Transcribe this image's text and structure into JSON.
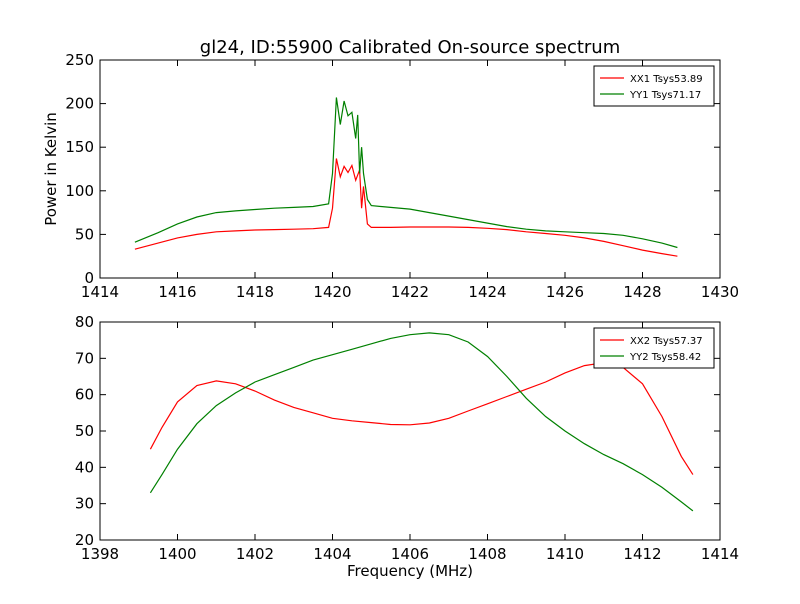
{
  "figure_title": "gl24, ID:55900 Calibrated On-source spectrum",
  "ylabel_shared": "Power in Kelvin",
  "xlabel_shared": "Frequency (MHz)",
  "chart_data": [
    {
      "type": "line",
      "title": "gl24, ID:55900 Calibrated On-source spectrum",
      "xlabel": "",
      "ylabel": "Power in Kelvin",
      "xlim": [
        1414,
        1430
      ],
      "ylim": [
        0,
        250
      ],
      "xticks": [
        1414,
        1416,
        1418,
        1420,
        1422,
        1424,
        1426,
        1428,
        1430
      ],
      "yticks": [
        0,
        50,
        100,
        150,
        200,
        250
      ],
      "legend_position": "top-right",
      "grid": false,
      "series": [
        {
          "name": "XX1 Tsys53.89",
          "color": "#ff0000",
          "x": [
            1414.9,
            1415.5,
            1416.0,
            1416.5,
            1417.0,
            1417.5,
            1418.0,
            1418.5,
            1419.0,
            1419.5,
            1419.9,
            1420.0,
            1420.1,
            1420.2,
            1420.3,
            1420.4,
            1420.5,
            1420.6,
            1420.7,
            1420.75,
            1420.8,
            1420.9,
            1421.0,
            1421.5,
            1422.0,
            1422.5,
            1423.0,
            1423.5,
            1424.0,
            1424.5,
            1425.0,
            1425.5,
            1426.0,
            1426.5,
            1427.0,
            1427.5,
            1428.0,
            1428.5,
            1428.9
          ],
          "values": [
            33,
            40,
            46,
            50,
            53,
            54,
            55,
            55.5,
            56,
            56.5,
            58,
            80,
            137,
            116,
            128,
            121,
            129,
            112,
            124,
            80,
            105,
            62,
            58,
            58,
            58.5,
            58.5,
            58.5,
            58,
            57,
            55.5,
            53,
            51,
            49,
            46,
            42,
            37,
            32,
            28,
            25
          ]
        },
        {
          "name": "YY1 Tsys71.17",
          "color": "#008000",
          "x": [
            1414.9,
            1415.5,
            1416.0,
            1416.5,
            1417.0,
            1417.5,
            1418.0,
            1418.5,
            1419.0,
            1419.5,
            1419.9,
            1420.0,
            1420.1,
            1420.2,
            1420.3,
            1420.4,
            1420.5,
            1420.6,
            1420.65,
            1420.7,
            1420.75,
            1420.8,
            1420.9,
            1421.0,
            1421.5,
            1422.0,
            1422.5,
            1423.0,
            1423.5,
            1424.0,
            1424.5,
            1425.0,
            1425.5,
            1426.0,
            1426.5,
            1427.0,
            1427.5,
            1428.0,
            1428.5,
            1428.9
          ],
          "values": [
            41,
            52,
            62,
            70,
            75,
            77,
            78.5,
            80,
            81,
            82,
            85,
            120,
            207,
            176,
            203,
            186,
            190,
            160,
            187,
            120,
            150,
            120,
            90,
            83,
            81,
            79,
            75,
            71,
            67,
            63,
            59,
            56,
            54,
            53,
            52,
            51,
            49,
            45,
            40,
            35
          ]
        }
      ]
    },
    {
      "type": "line",
      "title": "",
      "xlabel": "Frequency (MHz)",
      "ylabel": "",
      "xlim": [
        1398,
        1414
      ],
      "ylim": [
        20,
        80
      ],
      "xticks": [
        1398,
        1400,
        1402,
        1404,
        1406,
        1408,
        1410,
        1412,
        1414
      ],
      "yticks": [
        20,
        30,
        40,
        50,
        60,
        70,
        80
      ],
      "legend_position": "top-right",
      "grid": false,
      "series": [
        {
          "name": "XX2 Tsys57.37",
          "color": "#ff0000",
          "x": [
            1399.3,
            1399.6,
            1400.0,
            1400.5,
            1401.0,
            1401.5,
            1402.0,
            1402.5,
            1403.0,
            1403.5,
            1404.0,
            1404.5,
            1405.0,
            1405.5,
            1406.0,
            1406.5,
            1407.0,
            1407.5,
            1408.0,
            1408.5,
            1409.0,
            1409.5,
            1410.0,
            1410.5,
            1411.0,
            1411.5,
            1412.0,
            1412.5,
            1413.0,
            1413.3
          ],
          "values": [
            45,
            51,
            58,
            62.5,
            63.8,
            63,
            61,
            58.5,
            56.5,
            55,
            53.5,
            52.8,
            52.3,
            51.8,
            51.7,
            52.2,
            53.5,
            55.5,
            57.5,
            59.5,
            61.5,
            63.5,
            66,
            68,
            68.8,
            67.5,
            63,
            54,
            43,
            38
          ]
        },
        {
          "name": "YY2 Tsys58.42",
          "color": "#008000",
          "x": [
            1399.3,
            1399.6,
            1400.0,
            1400.5,
            1401.0,
            1401.5,
            1402.0,
            1402.5,
            1403.0,
            1403.5,
            1404.0,
            1404.5,
            1405.0,
            1405.5,
            1406.0,
            1406.5,
            1407.0,
            1407.5,
            1408.0,
            1408.5,
            1409.0,
            1409.5,
            1410.0,
            1410.5,
            1411.0,
            1411.5,
            1412.0,
            1412.5,
            1413.0,
            1413.3
          ],
          "values": [
            33,
            38,
            45,
            52,
            57,
            60.5,
            63.5,
            65.5,
            67.5,
            69.5,
            71,
            72.5,
            74,
            75.5,
            76.5,
            77,
            76.5,
            74.5,
            70.5,
            65,
            59,
            54,
            50,
            46.5,
            43.5,
            41,
            38,
            34.5,
            30.5,
            28
          ]
        }
      ]
    }
  ]
}
